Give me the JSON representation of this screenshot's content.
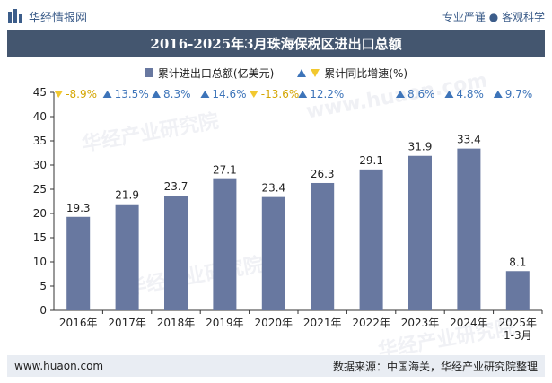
{
  "brand": {
    "name": "华经情报网"
  },
  "tagline": "专业严谨 ● 客观科学",
  "chart_data": {
    "type": "bar",
    "title": "2016-2025年3月珠海保税区进出口总额",
    "categories": [
      "2016年",
      "2017年",
      "2018年",
      "2019年",
      "2020年",
      "2021年",
      "2022年",
      "2023年",
      "2024年",
      "2025年\n1-3月"
    ],
    "series": [
      {
        "name": "累计进出口总额(亿美元)",
        "values": [
          19.3,
          21.9,
          23.7,
          27.1,
          23.4,
          26.3,
          29.1,
          31.9,
          33.4,
          8.1
        ],
        "value_labels": [
          "19.3",
          "21.9",
          "23.7",
          "27.1",
          "23.4",
          "26.3",
          "29.1",
          "31.9",
          "33.4",
          "8.1"
        ],
        "color": "#6878a0"
      },
      {
        "name": "累计同比增速(%)",
        "values": [
          -8.9,
          13.5,
          8.3,
          14.6,
          -13.6,
          12.2,
          null,
          8.6,
          4.8,
          9.7
        ],
        "value_labels": [
          "-8.9%",
          "13.5%",
          "8.3%",
          "14.6%",
          "-13.6%",
          "12.2%",
          "",
          "8.6%",
          "4.8%",
          "9.7%"
        ],
        "up_color": "#3d74b9",
        "down_color": "#f2c82f"
      }
    ],
    "yticks": [
      "0",
      "5",
      "10",
      "15",
      "20",
      "25",
      "30",
      "35",
      "40",
      "45"
    ],
    "ylim": [
      0,
      45
    ],
    "grid": false,
    "legend_position": "top"
  },
  "watermarks": [
    "华经产业研究院",
    "www.huaon.com"
  ],
  "footer": {
    "left": "www.huaon.com",
    "right": "数据来源：中国海关，华经产业研究院整理"
  }
}
